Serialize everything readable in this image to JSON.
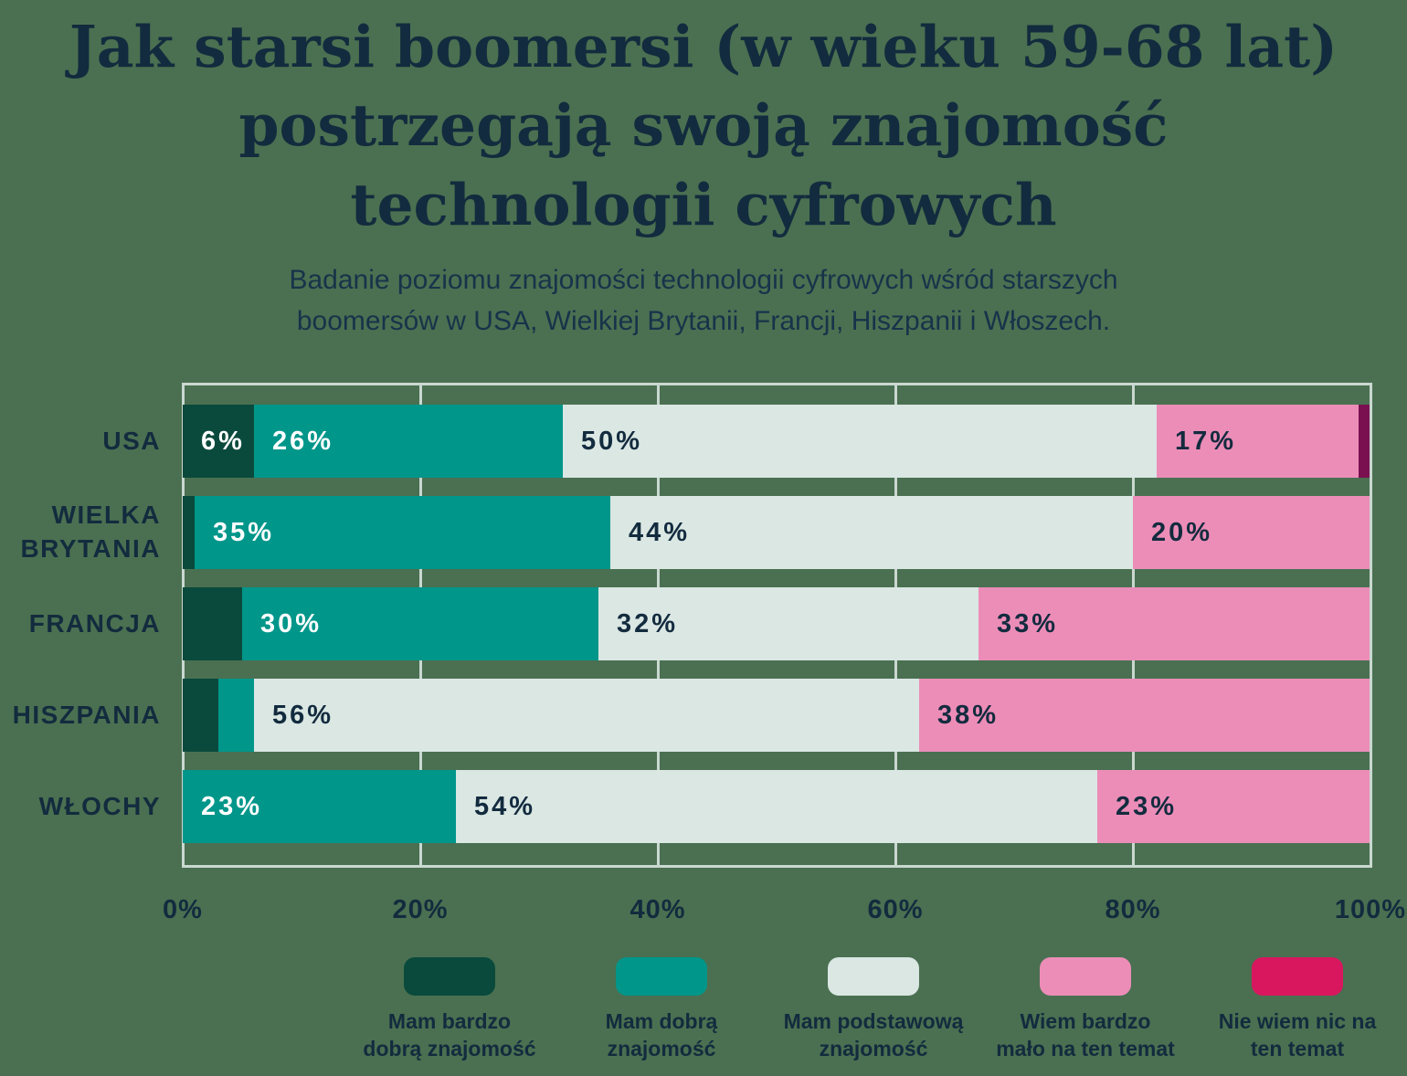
{
  "page": {
    "background": "#4A7051",
    "text_color": "#132B3E"
  },
  "title": "Jak starsi boomersi (w wieku 59-68 lat) postrzegają swoją znajomość technologii cyfrowych",
  "subtitle": "Badanie poziomu znajomości technologii cyfrowych wśród starszych boomersów w USA, Wielkiej Brytanii, Francji, Hiszpanii i Włoszech.",
  "chart_data": {
    "type": "bar",
    "orientation": "horizontal",
    "stacked": true,
    "title": "Jak starsi boomersi (w wieku 59-68 lat) postrzegają swoją znajomość technologii cyfrowych",
    "categories": [
      "USA",
      "WIELKA BRYTANIA",
      "FRANCJA",
      "HISZPANIA",
      "WŁOCHY"
    ],
    "series": [
      {
        "name": "Mam bardzo dobrą znajomość",
        "color": "#0A4A3C",
        "values": [
          6,
          1,
          5,
          3,
          0
        ]
      },
      {
        "name": "Mam dobrą znajomość",
        "color": "#00968A",
        "values": [
          26,
          35,
          30,
          3,
          23
        ]
      },
      {
        "name": "Mam podstawową znajomość",
        "color": "#DAE7E3",
        "values": [
          50,
          44,
          32,
          56,
          54
        ]
      },
      {
        "name": "Wiem bardzo mało na ten temat",
        "color": "#EC8DB8",
        "values": [
          17,
          20,
          33,
          38,
          23
        ]
      },
      {
        "name": "Nie wiem nic na ten temat",
        "color": "#D8175F",
        "bar_color": "#7A1050",
        "values": [
          1,
          0,
          0,
          0,
          0
        ]
      }
    ],
    "x_ticks": [
      "0%",
      "20%",
      "40%",
      "60%",
      "80%",
      "100%"
    ],
    "xlim": [
      0,
      100
    ],
    "grid": true,
    "legend_position": "bottom",
    "min_label_value": 6,
    "label_color_on_dark": "#FFFFFF",
    "label_color_on_light": "#132B3E",
    "gridline_color": "#C9D8D0"
  }
}
